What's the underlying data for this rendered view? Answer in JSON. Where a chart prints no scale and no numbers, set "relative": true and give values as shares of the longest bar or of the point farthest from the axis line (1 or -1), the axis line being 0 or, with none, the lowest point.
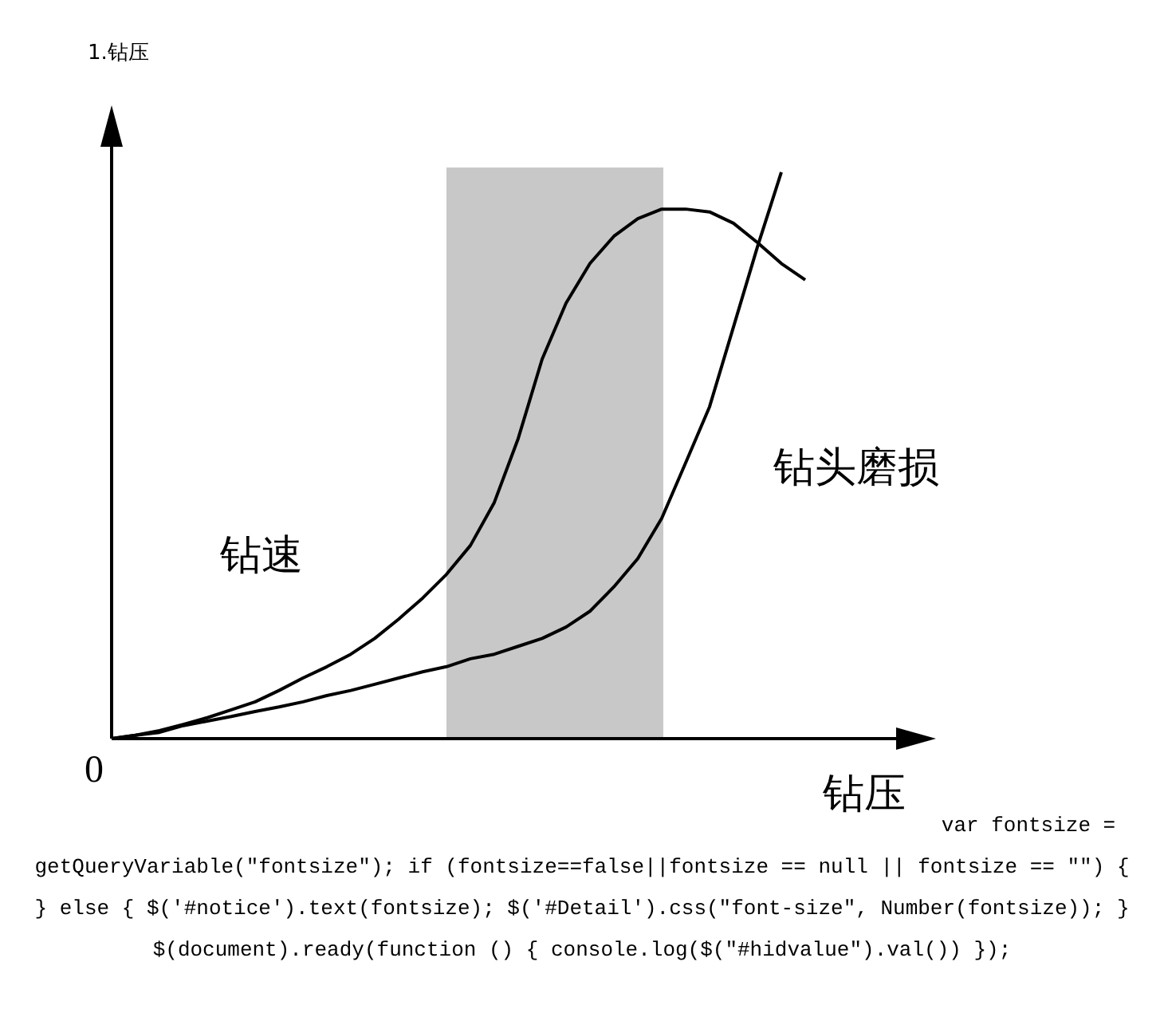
{
  "chart_data": {
    "type": "line",
    "title": "1.钻压",
    "xlabel": "钻压",
    "relative": true,
    "legend": false,
    "marker": "none",
    "line_style": "solid",
    "categories": [
      null,
      null,
      null,
      null,
      null,
      null,
      null,
      null,
      null,
      null,
      null,
      null,
      null,
      null,
      null,
      null,
      null,
      null,
      null,
      null,
      null,
      null,
      null,
      null,
      null,
      null,
      null,
      null,
      null,
      null
    ],
    "series": [
      {
        "name": "钻速",
        "color": "#000000",
        "values": [
          0,
          0.006,
          0.014,
          0.025,
          0.037,
          0.051,
          0.065,
          0.085,
          0.107,
          0.127,
          0.149,
          0.177,
          0.211,
          0.248,
          0.29,
          0.341,
          0.417,
          0.53,
          0.67,
          0.769,
          0.839,
          0.887,
          0.918,
          0.935,
          0.935,
          0.93,
          0.91,
          0.876,
          0.839,
          0.81
        ]
      },
      {
        "name": "钻头磨损",
        "color": "#000000",
        "values": [
          0,
          0.006,
          0.011,
          0.023,
          0.031,
          0.039,
          0.048,
          0.056,
          0.065,
          0.076,
          0.085,
          0.096,
          0.107,
          0.118,
          0.127,
          0.141,
          0.149,
          0.163,
          0.177,
          0.197,
          0.225,
          0.268,
          0.318,
          0.389,
          0.487,
          0.586,
          0.727,
          0.868,
          1,
          null
        ]
      }
    ],
    "annotations": [
      "0",
      "var fontsize = getQueryVariable(\"fontsize\"); if (fontsize==false||fontsize == null || fontsize == \"\") { } else { $('#notice').text(fontsize); $('#Detail').css(\"font-size\", Number(fontsize)); } $(document).ready(function () { console.log($(\"#hidvalue\").val()) });"
    ]
  }
}
